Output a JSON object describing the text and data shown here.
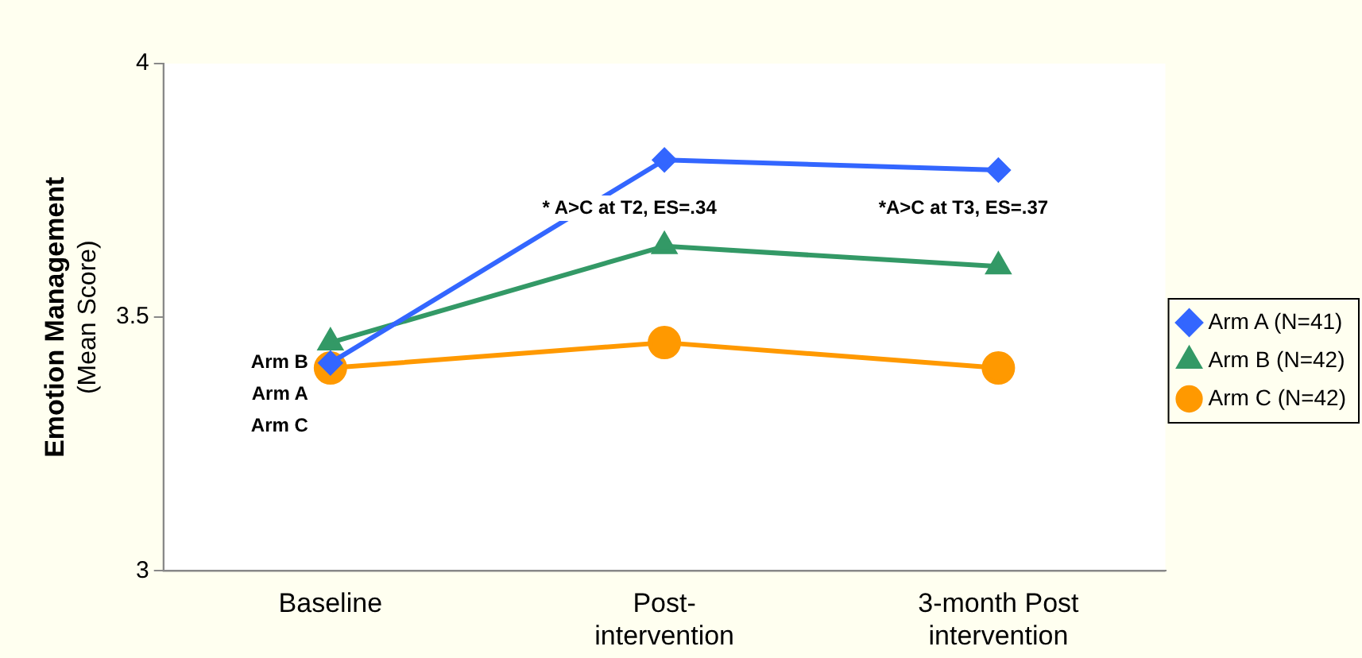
{
  "chart_data": {
    "type": "line",
    "ylabel": "Emotion Management (Mean Score)",
    "categories": [
      "Baseline",
      "Post- intervention",
      "3-month Post intervention"
    ],
    "series": [
      {
        "name": "Arm A (N=41)",
        "color": "#3366ff",
        "marker": "diamond",
        "values": [
          3.41,
          3.81,
          3.79
        ]
      },
      {
        "name": "Arm B (N=42)",
        "color": "#339966",
        "marker": "triangle",
        "values": [
          3.45,
          3.64,
          3.6
        ]
      },
      {
        "name": "Arm C (N=42)",
        "color": "#ff9900",
        "marker": "circle",
        "values": [
          3.4,
          3.45,
          3.4
        ]
      }
    ],
    "ylim": [
      3,
      4
    ],
    "yticks": [
      3,
      3.5,
      4
    ],
    "grid": false,
    "legend": "right",
    "annotations": [
      "Arm B",
      "Arm A",
      "Arm C",
      "* A>C at T2, ES=.34",
      "*A>C at T3, ES=.37"
    ]
  }
}
